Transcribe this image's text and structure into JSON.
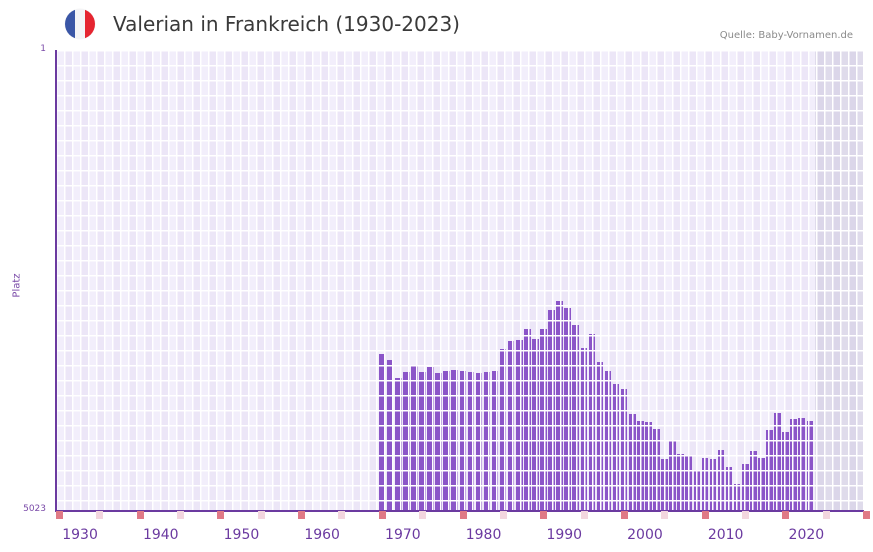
{
  "header": {
    "title": "Valerian in Frankreich (1930-2023)",
    "source": "Quelle: Baby-Vornamen.de",
    "flag": {
      "name": "france-flag-icon",
      "colors": [
        "#3a56a6",
        "#f4f4f6",
        "#e52530"
      ]
    }
  },
  "colors": {
    "bar": "#8b55c8",
    "axis": "#6b3aa0",
    "decade_marker": "#e07a86",
    "half_decade_marker": "#f3d6de"
  },
  "chart_data": {
    "type": "bar",
    "title": "Valerian in Frankreich (1930-2023)",
    "xlabel": "",
    "ylabel": "Platz",
    "y_inverted": true,
    "ylim": [
      1,
      5023
    ],
    "y_ticks": [
      "1",
      "5023"
    ],
    "x_ticks": [
      "1930",
      "1940",
      "1950",
      "1960",
      "1970",
      "1980",
      "1990",
      "2000",
      "2010",
      "2020"
    ],
    "x_range": [
      1929,
      2029
    ],
    "future_shade_from": 2023,
    "categories": [
      1969,
      1970,
      1971,
      1972,
      1973,
      1974,
      1975,
      1976,
      1977,
      1978,
      1979,
      1980,
      1981,
      1982,
      1983,
      1984,
      1985,
      1986,
      1987,
      1988,
      1989,
      1990,
      1991,
      1992,
      1993,
      1994,
      1995,
      1996,
      1997,
      1998,
      1999,
      2000,
      2001,
      2002,
      2003,
      2004,
      2005,
      2006,
      2007,
      2008,
      2009,
      2010,
      2011,
      2012,
      2013,
      2014,
      2015,
      2016,
      2017,
      2018,
      2019,
      2020,
      2021,
      2022
    ],
    "values": [
      3319,
      3385,
      3581,
      3516,
      3450,
      3516,
      3461,
      3527,
      3505,
      3494,
      3505,
      3516,
      3527,
      3516,
      3505,
      3264,
      3177,
      3166,
      3046,
      3155,
      3046,
      2838,
      2740,
      2816,
      3002,
      3253,
      3100,
      3406,
      3505,
      3647,
      3702,
      3975,
      4051,
      4062,
      4139,
      4466,
      4269,
      4411,
      4422,
      4586,
      4455,
      4466,
      4368,
      4553,
      4739,
      4520,
      4378,
      4455,
      4149,
      3964,
      4171,
      4029,
      4018,
      4051
    ],
    "grid": true,
    "legend": null
  },
  "axis": {
    "y_top": "1",
    "y_bottom": "5023",
    "y_label": "Platz"
  }
}
